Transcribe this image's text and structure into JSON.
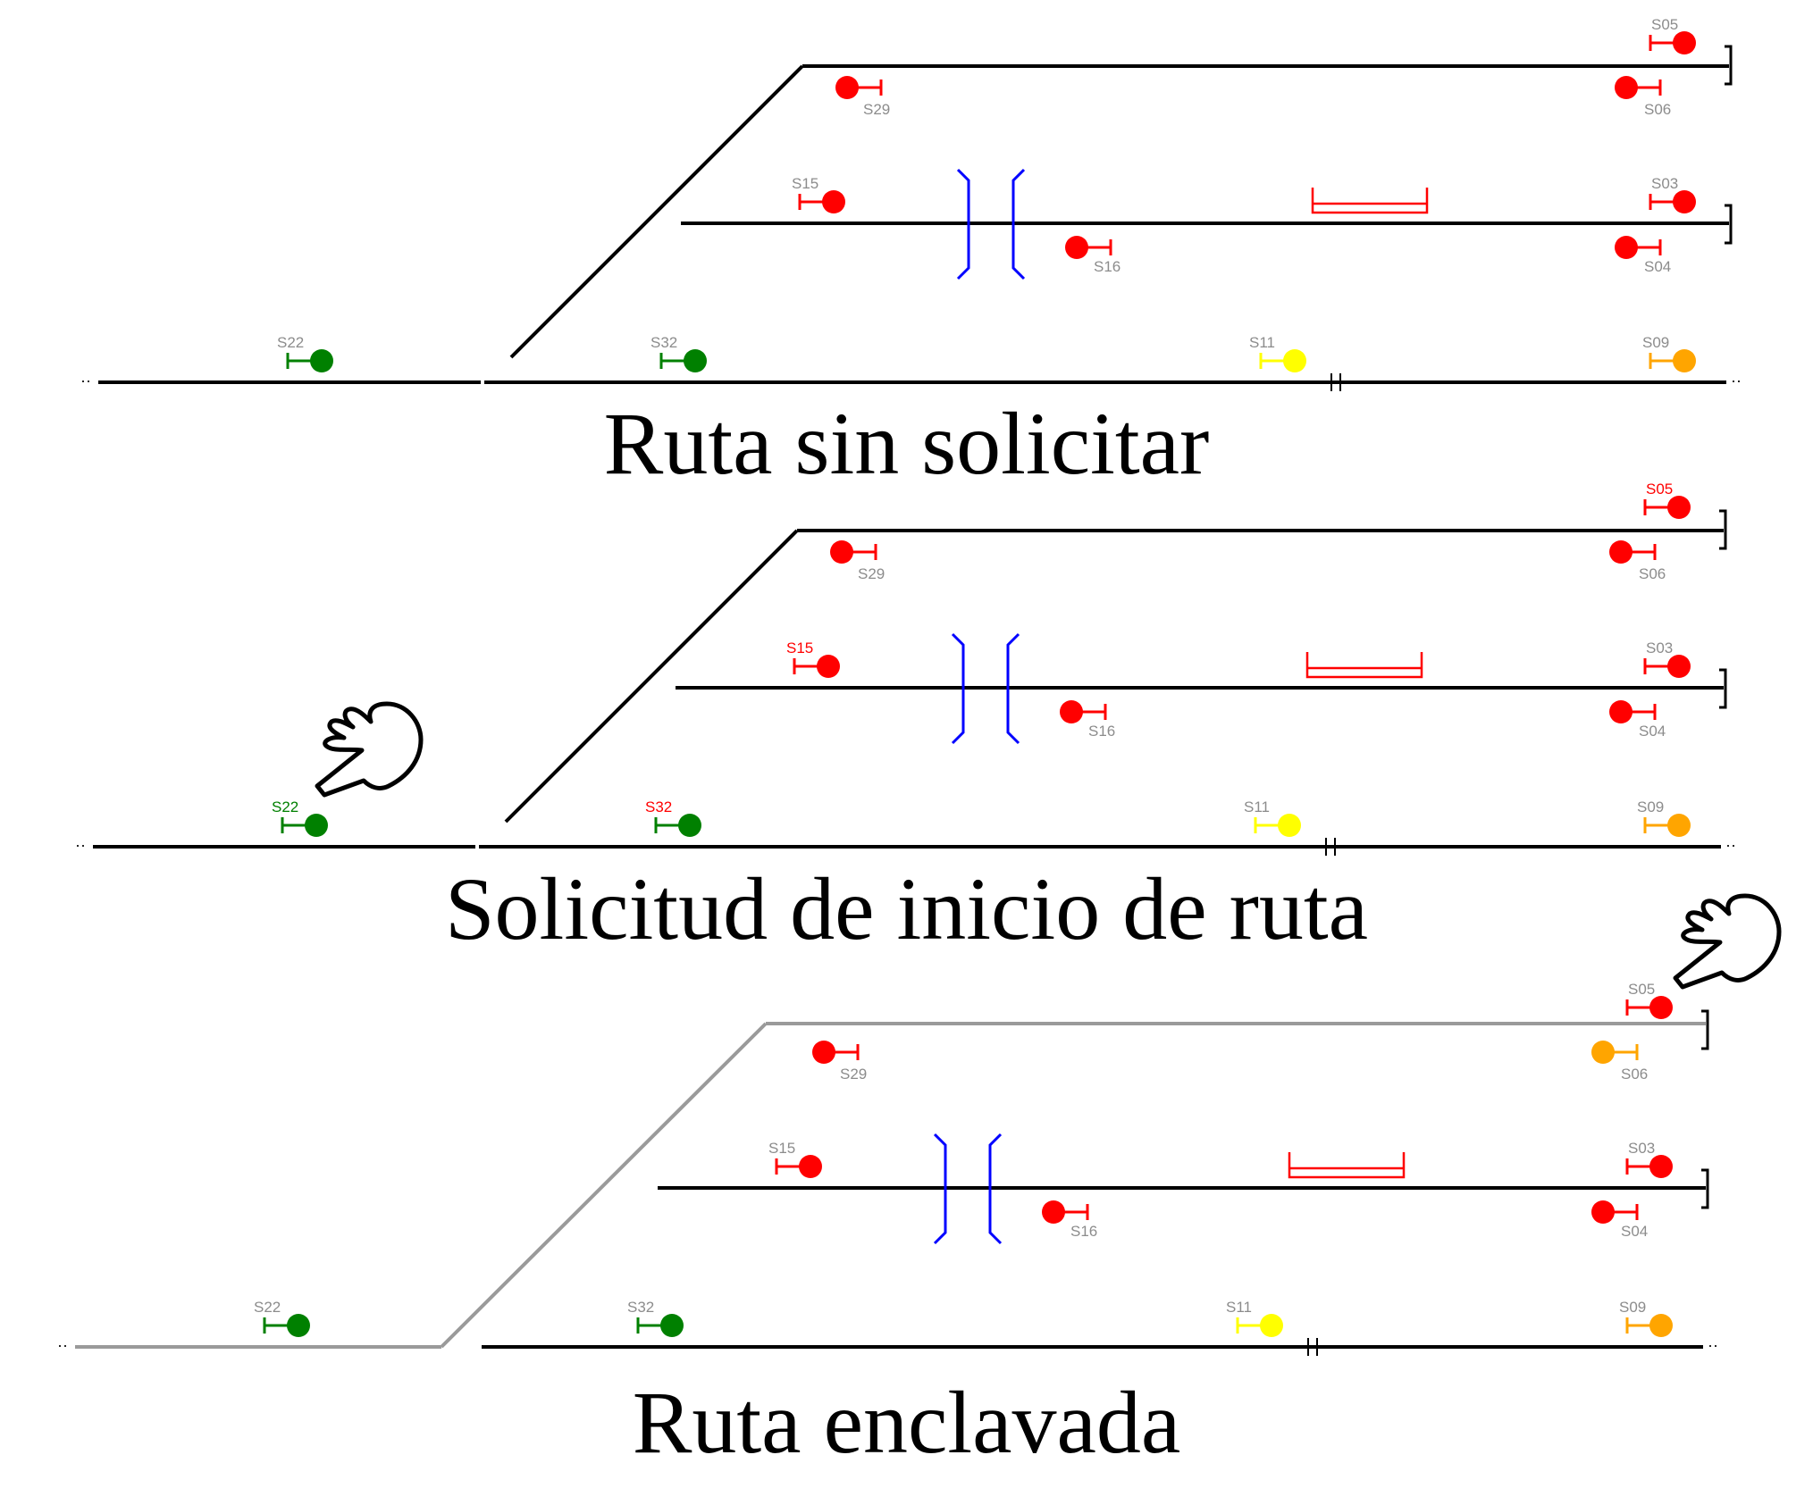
{
  "colors": {
    "track": "#000000",
    "route_locked": "#9a9a9a",
    "signal_red": "#ff0000",
    "signal_green": "#008000",
    "signal_yellow": "#ffff00",
    "signal_orange": "#ffa500",
    "label_default": "#8c8c8c",
    "bridge": "#0000ff",
    "platform": "#ff0000"
  },
  "panels": [
    {
      "caption": "Ruta sin solicitar",
      "route_locked": false,
      "signals": [
        {
          "id": "S05",
          "aspect": "red",
          "label_color": "default"
        },
        {
          "id": "S06",
          "aspect": "red",
          "label_color": "default"
        },
        {
          "id": "S29",
          "aspect": "red",
          "label_color": "default"
        },
        {
          "id": "S15",
          "aspect": "red",
          "label_color": "default"
        },
        {
          "id": "S16",
          "aspect": "red",
          "label_color": "default"
        },
        {
          "id": "S03",
          "aspect": "red",
          "label_color": "default"
        },
        {
          "id": "S04",
          "aspect": "red",
          "label_color": "default"
        },
        {
          "id": "S22",
          "aspect": "green",
          "label_color": "default"
        },
        {
          "id": "S32",
          "aspect": "green",
          "label_color": "default"
        },
        {
          "id": "S11",
          "aspect": "yellow",
          "label_color": "default"
        },
        {
          "id": "S09",
          "aspect": "orange",
          "label_color": "default"
        }
      ]
    },
    {
      "caption": "Solicitud de inicio de ruta",
      "route_locked": false,
      "signals": [
        {
          "id": "S05",
          "aspect": "red",
          "label_color": "red"
        },
        {
          "id": "S06",
          "aspect": "red",
          "label_color": "default"
        },
        {
          "id": "S29",
          "aspect": "red",
          "label_color": "default"
        },
        {
          "id": "S15",
          "aspect": "red",
          "label_color": "red"
        },
        {
          "id": "S16",
          "aspect": "red",
          "label_color": "default"
        },
        {
          "id": "S03",
          "aspect": "red",
          "label_color": "default"
        },
        {
          "id": "S04",
          "aspect": "red",
          "label_color": "default"
        },
        {
          "id": "S22",
          "aspect": "green",
          "label_color": "green"
        },
        {
          "id": "S32",
          "aspect": "green",
          "label_color": "red"
        },
        {
          "id": "S11",
          "aspect": "yellow",
          "label_color": "default"
        },
        {
          "id": "S09",
          "aspect": "orange",
          "label_color": "default"
        }
      ]
    },
    {
      "caption": "Ruta enclavada",
      "route_locked": true,
      "signals": [
        {
          "id": "S05",
          "aspect": "red",
          "label_color": "default"
        },
        {
          "id": "S06",
          "aspect": "orange",
          "label_color": "default"
        },
        {
          "id": "S29",
          "aspect": "red",
          "label_color": "default"
        },
        {
          "id": "S15",
          "aspect": "red",
          "label_color": "default"
        },
        {
          "id": "S16",
          "aspect": "red",
          "label_color": "default"
        },
        {
          "id": "S03",
          "aspect": "red",
          "label_color": "default"
        },
        {
          "id": "S04",
          "aspect": "red",
          "label_color": "default"
        },
        {
          "id": "S22",
          "aspect": "green",
          "label_color": "default"
        },
        {
          "id": "S32",
          "aspect": "green",
          "label_color": "default"
        },
        {
          "id": "S11",
          "aspect": "yellow",
          "label_color": "default"
        },
        {
          "id": "S09",
          "aspect": "orange",
          "label_color": "default"
        }
      ]
    }
  ],
  "pointers": [
    {
      "target": "S22",
      "icon": "pointing-hand-icon"
    },
    {
      "target": "S05",
      "icon": "pointing-hand-icon"
    }
  ]
}
